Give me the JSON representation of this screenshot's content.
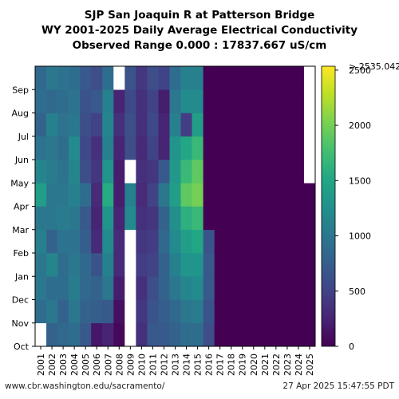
{
  "header": {
    "line1": "SJP San Joaquin R at Patterson Bridge",
    "line2": "WY 2001-2025 Daily Average Electrical Conductivity",
    "line3": "Observed Range 0.000 : 17837.667 uS/cm"
  },
  "footer": {
    "left": "www.cbr.washington.edu/sacramento/",
    "right": "27 Apr 2025 15:47:55 PDT"
  },
  "chart_data": {
    "type": "heatmap",
    "title": "SJP San Joaquin R at Patterson Bridge",
    "subtitle": "WY 2001-2025 Daily Average Electrical Conductivity",
    "observed_range_text": "Observed Range 0.000 : 17837.667 uS/cm",
    "x_categories": [
      "2001",
      "2002",
      "2003",
      "2004",
      "2005",
      "2006",
      "2007",
      "2008",
      "2009",
      "2010",
      "2011",
      "2012",
      "2013",
      "2014",
      "2015",
      "2016",
      "2017",
      "2018",
      "2019",
      "2020",
      "2021",
      "2022",
      "2023",
      "2024",
      "2025"
    ],
    "y_categories": [
      "Oct",
      "Nov",
      "Dec",
      "Jan",
      "Feb",
      "Mar",
      "Apr",
      "May",
      "Jun",
      "Jul",
      "Aug",
      "Sep"
    ],
    "colorbar": {
      "min": 0,
      "max": 2535.042,
      "ticks": [
        0,
        500,
        1000,
        1500,
        2000,
        2500
      ],
      "max_label": "> 2535.042",
      "colormap": "viridis"
    },
    "approx_monthly_values": [
      [
        null,
        900,
        1000,
        1000,
        1100,
        1000,
        1400,
        1150,
        950,
        800,
        900,
        850
      ],
      [
        800,
        1000,
        900,
        1150,
        800,
        1000,
        1000,
        1050,
        1000,
        1100,
        850,
        1000
      ],
      [
        850,
        800,
        900,
        900,
        950,
        1050,
        1000,
        950,
        900,
        950,
        900,
        950
      ],
      [
        900,
        1000,
        1050,
        1000,
        950,
        1000,
        1100,
        1150,
        1200,
        1000,
        950,
        900
      ],
      [
        700,
        800,
        850,
        850,
        750,
        700,
        900,
        600,
        550,
        600,
        650,
        700
      ],
      [
        150,
        750,
        800,
        650,
        300,
        250,
        300,
        400,
        350,
        500,
        700,
        600
      ],
      [
        250,
        700,
        1000,
        1100,
        1200,
        1300,
        1550,
        1300,
        1100,
        1150,
        1100,
        900
      ],
      [
        50,
        100,
        200,
        300,
        300,
        250,
        200,
        200,
        250,
        350,
        250,
        null
      ],
      [
        null,
        null,
        null,
        null,
        null,
        1200,
        1100,
        null,
        600,
        600,
        550,
        650
      ],
      [
        350,
        400,
        350,
        450,
        400,
        350,
        300,
        350,
        300,
        350,
        350,
        400
      ],
      [
        700,
        650,
        600,
        500,
        450,
        400,
        500,
        400,
        500,
        550,
        500,
        600
      ],
      [
        700,
        750,
        800,
        800,
        850,
        800,
        1000,
        700,
        250,
        250,
        200,
        500
      ],
      [
        800,
        850,
        1000,
        1100,
        1200,
        1250,
        1400,
        1350,
        1300,
        1100,
        1000,
        900
      ],
      [
        900,
        1000,
        1150,
        1300,
        1400,
        1600,
        1900,
        1700,
        1500,
        450,
        1200,
        1100
      ],
      [
        900,
        1050,
        1200,
        1300,
        1500,
        1700,
        2000,
        1900,
        1700,
        1400,
        1200,
        1100
      ],
      [
        600,
        650,
        700,
        700,
        650,
        0,
        0,
        0,
        0,
        0,
        0,
        0
      ],
      [
        0,
        0,
        0,
        0,
        0,
        0,
        0,
        0,
        0,
        0,
        0,
        0
      ],
      [
        0,
        0,
        0,
        0,
        0,
        0,
        0,
        0,
        0,
        0,
        0,
        0
      ],
      [
        0,
        0,
        0,
        0,
        0,
        0,
        0,
        0,
        0,
        0,
        0,
        0
      ],
      [
        0,
        0,
        0,
        0,
        0,
        0,
        0,
        0,
        0,
        0,
        0,
        0
      ],
      [
        0,
        0,
        0,
        0,
        0,
        0,
        0,
        0,
        0,
        0,
        0,
        0
      ],
      [
        0,
        0,
        0,
        0,
        0,
        0,
        0,
        0,
        0,
        0,
        0,
        0
      ],
      [
        0,
        0,
        0,
        0,
        0,
        0,
        0,
        0,
        0,
        0,
        0,
        0
      ],
      [
        0,
        0,
        0,
        0,
        0,
        0,
        0,
        0,
        0,
        0,
        0,
        0
      ],
      [
        0,
        0,
        0,
        0,
        0,
        0,
        0,
        null,
        null,
        null,
        null,
        null
      ]
    ]
  }
}
